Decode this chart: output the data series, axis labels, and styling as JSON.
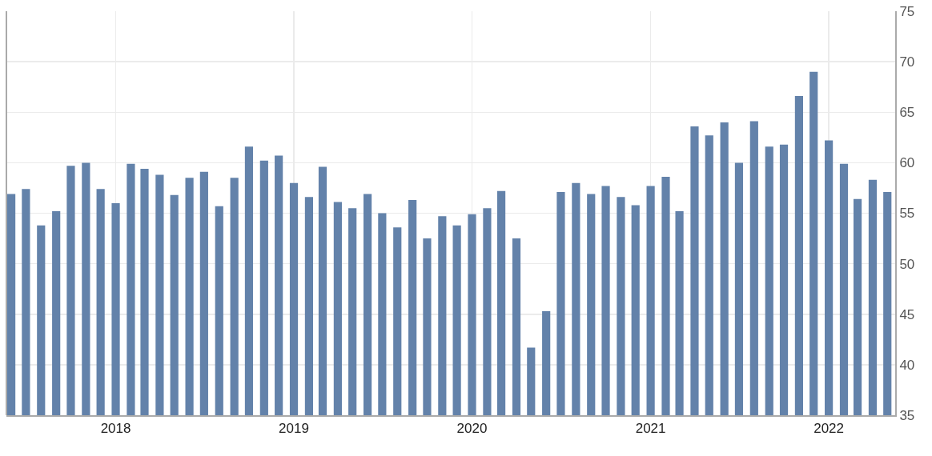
{
  "chart_data": {
    "type": "bar",
    "x": [
      "2017-06",
      "2017-07",
      "2017-08",
      "2017-09",
      "2017-10",
      "2017-11",
      "2017-12",
      "2018-01",
      "2018-02",
      "2018-03",
      "2018-04",
      "2018-05",
      "2018-06",
      "2018-07",
      "2018-08",
      "2018-09",
      "2018-10",
      "2018-11",
      "2018-12",
      "2019-01",
      "2019-02",
      "2019-03",
      "2019-04",
      "2019-05",
      "2019-06",
      "2019-07",
      "2019-08",
      "2019-09",
      "2019-10",
      "2019-11",
      "2019-12",
      "2020-01",
      "2020-02",
      "2020-03",
      "2020-04",
      "2020-05",
      "2020-06",
      "2020-07",
      "2020-08",
      "2020-09",
      "2020-10",
      "2020-11",
      "2020-12",
      "2021-01",
      "2021-02",
      "2021-03",
      "2021-04",
      "2021-05",
      "2021-06",
      "2021-07",
      "2021-08",
      "2021-09",
      "2021-10",
      "2021-11",
      "2021-12",
      "2022-01",
      "2022-02",
      "2022-03",
      "2022-04",
      "2022-05"
    ],
    "values": [
      56.9,
      57.4,
      53.8,
      55.2,
      59.7,
      60.0,
      57.4,
      56.0,
      59.9,
      59.4,
      58.8,
      56.8,
      58.5,
      59.1,
      55.7,
      58.5,
      61.6,
      60.2,
      60.7,
      58.0,
      56.6,
      59.6,
      56.1,
      55.5,
      56.9,
      55.0,
      53.6,
      56.3,
      52.5,
      54.7,
      53.8,
      54.9,
      55.5,
      57.2,
      52.5,
      41.7,
      45.3,
      57.1,
      58.0,
      56.9,
      57.7,
      56.6,
      55.8,
      57.7,
      58.6,
      55.2,
      63.6,
      62.7,
      64.0,
      60.0,
      64.1,
      61.6,
      61.8,
      66.6,
      69.0,
      62.2,
      59.9,
      56.4,
      58.3,
      57.1
    ],
    "color": "#6382aa",
    "xlim": [
      "2017-05-22",
      "2022-05-17"
    ],
    "xticks": [
      {
        "value": "2018-01",
        "label": "2018"
      },
      {
        "value": "2019-01",
        "label": "2019"
      },
      {
        "value": "2020-01",
        "label": "2020"
      },
      {
        "value": "2021-01",
        "label": "2021"
      },
      {
        "value": "2022-01",
        "label": "2022"
      }
    ],
    "ylim": [
      35,
      75
    ],
    "yticks": [
      35,
      40,
      45,
      50,
      55,
      60,
      65,
      70,
      75
    ],
    "grid": true
  }
}
